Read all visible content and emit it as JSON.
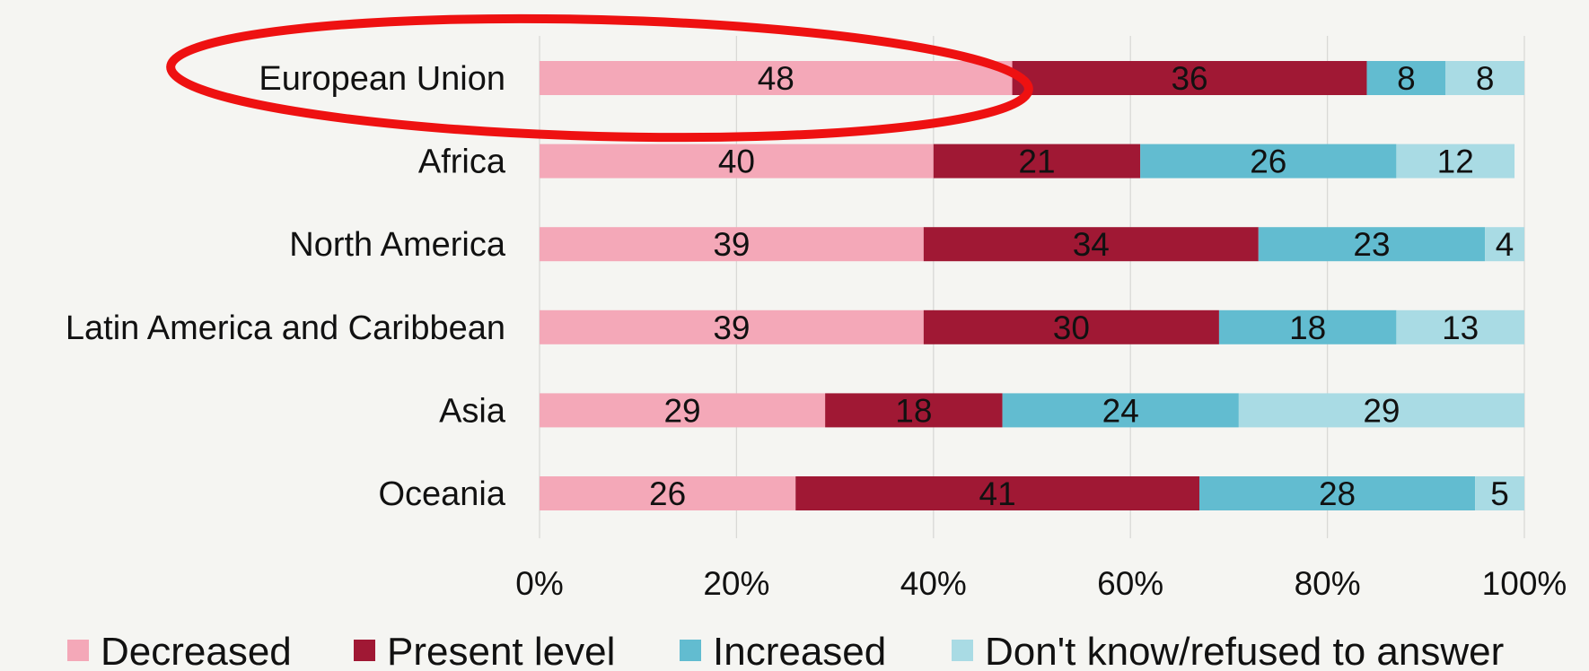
{
  "chart_data": {
    "type": "bar",
    "orientation": "horizontal",
    "stacked": true,
    "percent_stacked": true,
    "categories": [
      "European Union",
      "Africa",
      "North America",
      "Latin America and Caribbean",
      "Asia",
      "Oceania"
    ],
    "series": [
      {
        "name": "Decreased",
        "color": "#f4a8b8",
        "values": [
          48,
          40,
          39,
          39,
          29,
          26
        ]
      },
      {
        "name": "Present level",
        "color": "#a01834",
        "values": [
          36,
          21,
          34,
          30,
          18,
          41
        ]
      },
      {
        "name": "Increased",
        "color": "#62bcd0",
        "values": [
          8,
          26,
          23,
          18,
          24,
          28
        ]
      },
      {
        "name": "Don't know/refused to answer",
        "color": "#a9dbe4",
        "values": [
          8,
          12,
          4,
          13,
          29,
          5
        ]
      }
    ],
    "xlim": [
      0,
      100
    ],
    "x_ticks": [
      "0%",
      "20%",
      "40%",
      "60%",
      "80%",
      "100%"
    ],
    "grid": true,
    "legend_position": "bottom",
    "highlight": {
      "category": "European Union",
      "shape": "ellipse",
      "color": "#ee1111"
    }
  }
}
